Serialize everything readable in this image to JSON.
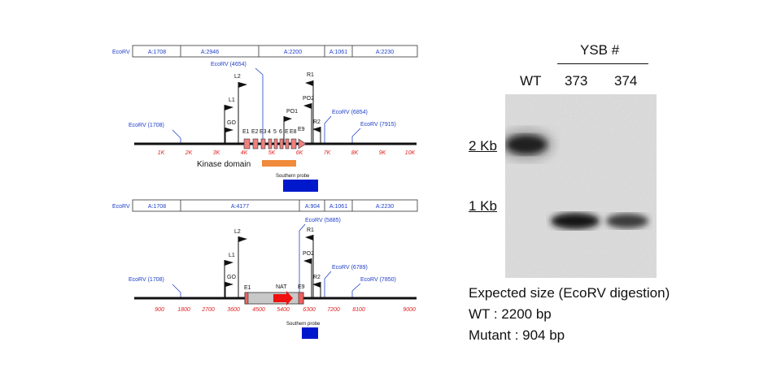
{
  "restriction_tracks": {
    "top": {
      "label": "EcoRV",
      "fragments": [
        "A:1708",
        "A:2946",
        "A:2200",
        "A:1061",
        "A:2230"
      ]
    },
    "bottom": {
      "label": "EcoRV",
      "fragments": [
        "A:1708",
        "A:4177",
        "A:904",
        "A:1061",
        "A:2230"
      ]
    }
  },
  "wt_map": {
    "sites": [
      "EcoRV (1708)",
      "EcoRV (4654)",
      "EcoRV (6854)",
      "EcoRV (7915)"
    ],
    "primers": [
      "L2",
      "L1",
      "GO",
      "R1",
      "PO2",
      "PO1",
      "R2"
    ],
    "exons": [
      "E1",
      "E2",
      "E3",
      "4",
      "5",
      "6",
      "E",
      "E8",
      "E9"
    ],
    "axis_ticks": [
      "1K",
      "2K",
      "3K",
      "4K",
      "5K",
      "6K",
      "7K",
      "8K",
      "9K",
      "10K"
    ],
    "kinase_label": "Kinase domain",
    "probe_label": "Southern probe",
    "colors": {
      "exon": "#f08080",
      "kinase": "#f08a3c",
      "probe": "#0018cc",
      "site": "#1a3dc8",
      "tick": "#e02020"
    }
  },
  "mutant_map": {
    "sites": [
      "EcoRV (1708)",
      "EcoRV (5885)",
      "EcoRV (6789)",
      "EcoRV (7850)"
    ],
    "primers": [
      "L2",
      "L1",
      "GO",
      "R1",
      "PO2",
      "R2"
    ],
    "exon_labels": [
      "E1",
      "E9"
    ],
    "cassette_label": "NAT",
    "axis_ticks": [
      "900",
      "1800",
      "2700",
      "3600",
      "4500",
      "5400",
      "6300",
      "7200",
      "8100",
      "9000"
    ],
    "probe_label": "Southern probe",
    "colors": {
      "cassette": "#c8c8c8",
      "arrow": "#ee1111"
    }
  },
  "gel": {
    "group_label": "YSB #",
    "lanes": [
      "WT",
      "373",
      "374"
    ],
    "size_markers": [
      "2 Kb",
      "1 Kb"
    ]
  },
  "expected": {
    "title": "Expected size (EcoRV digestion)",
    "wt": "WT : 2200 bp",
    "mutant": "Mutant : 904 bp"
  }
}
